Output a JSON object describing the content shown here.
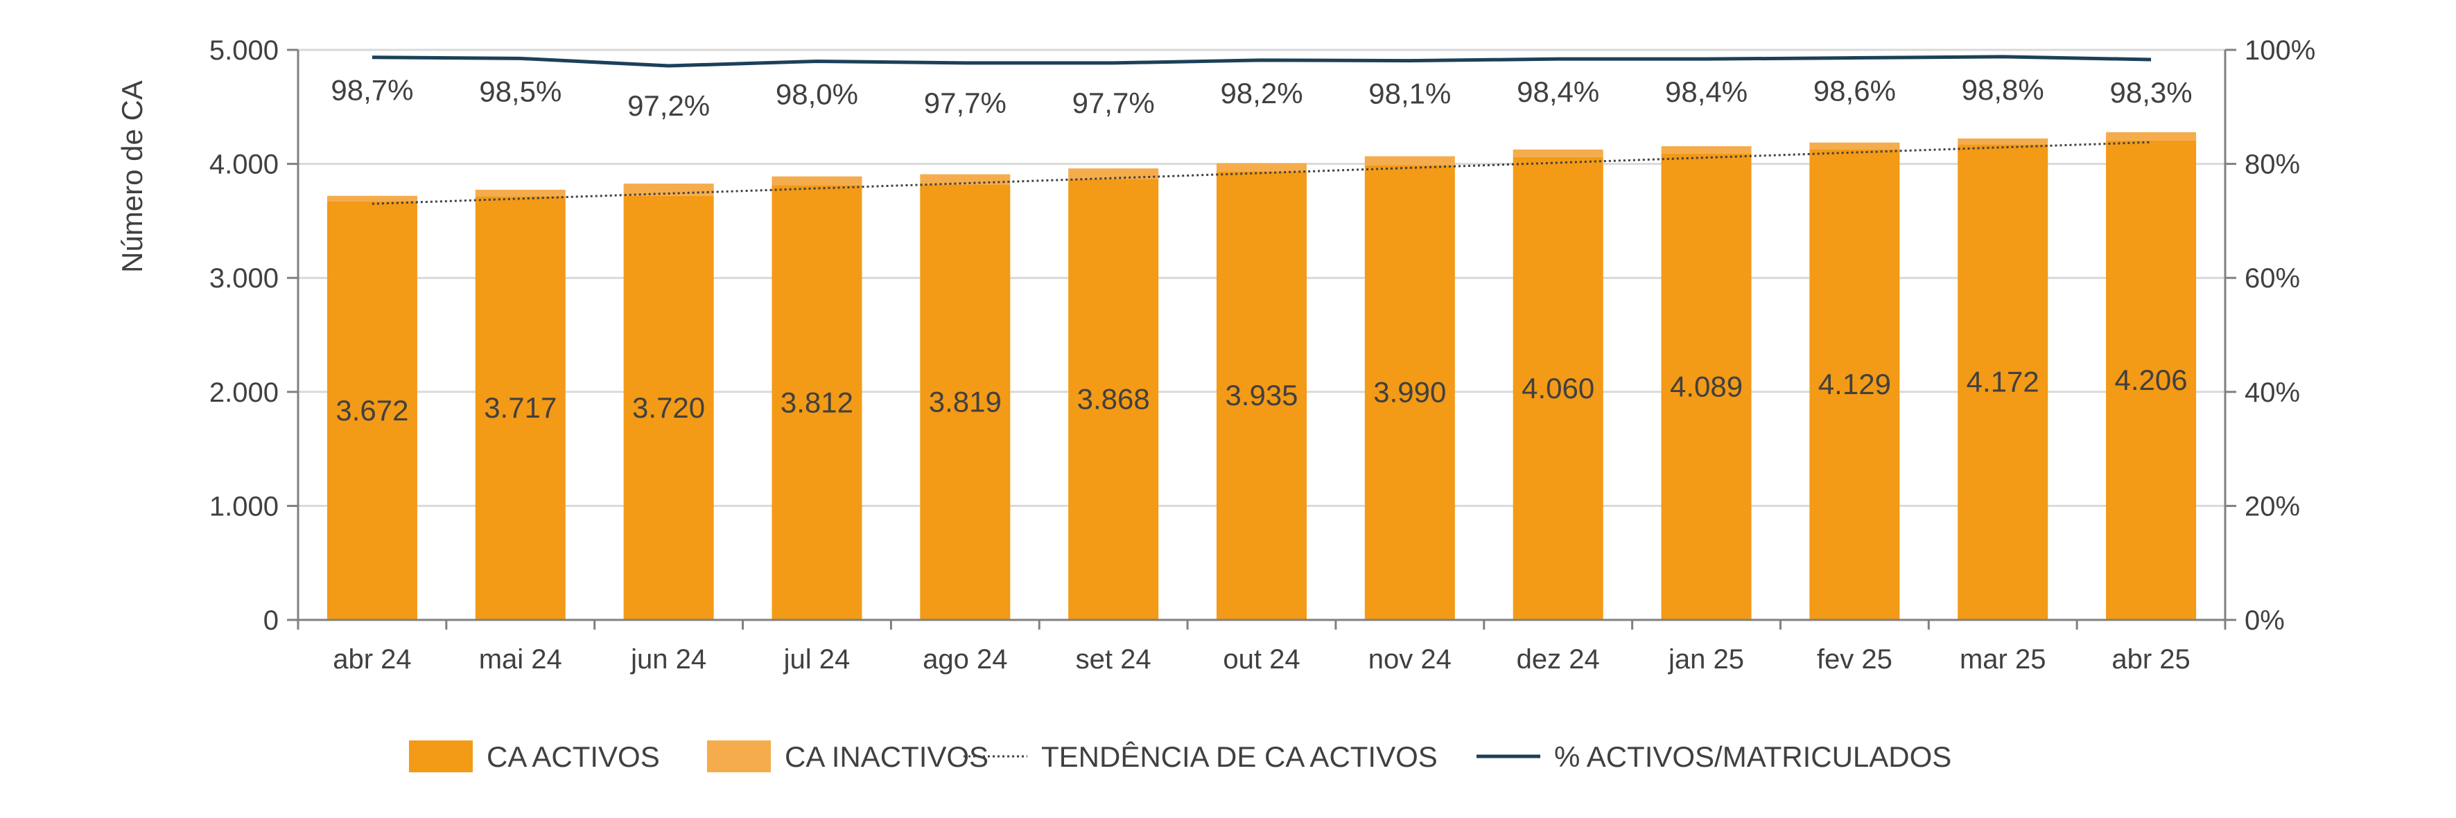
{
  "chart_data": {
    "type": "bar",
    "categories": [
      "abr 24",
      "mai 24",
      "jun 24",
      "jul 24",
      "ago 24",
      "set 24",
      "out 24",
      "nov 24",
      "dez 24",
      "jan 25",
      "fev 25",
      "mar 25",
      "abr 25"
    ],
    "series": [
      {
        "name": "CA ACTIVOS",
        "type": "bar",
        "axis": "left",
        "color": "#F39A16",
        "values": [
          3672,
          3717,
          3720,
          3812,
          3819,
          3868,
          3935,
          3990,
          4060,
          4089,
          4129,
          4172,
          4206
        ],
        "labels": [
          "3.672",
          "3.717",
          "3.720",
          "3.812",
          "3.819",
          "3.868",
          "3.935",
          "3.990",
          "4.060",
          "4.089",
          "4.129",
          "4.172",
          "4.206"
        ]
      },
      {
        "name": "CA INACTIVOS",
        "type": "bar-stacked",
        "axis": "left",
        "color": "#F5AC4C",
        "values": [
          48,
          56,
          107,
          78,
          90,
          92,
          71,
          77,
          66,
          66,
          58,
          51,
          72
        ]
      },
      {
        "name": "TENDÊNCIA DE CA ACTIVOS",
        "type": "trendline",
        "axis": "left",
        "color": "#404040",
        "style": "dotted",
        "values": [
          3650,
          3695,
          3740,
          3785,
          3830,
          3875,
          3920,
          3965,
          4010,
          4055,
          4100,
          4145,
          4190
        ]
      },
      {
        "name": "% ACTIVOS/MATRICULADOS",
        "type": "line",
        "axis": "right",
        "color": "#1C4058",
        "values": [
          98.7,
          98.5,
          97.2,
          98.0,
          97.7,
          97.7,
          98.2,
          98.1,
          98.4,
          98.4,
          98.6,
          98.8,
          98.3
        ],
        "labels": [
          "98,7%",
          "98,5%",
          "97,2%",
          "98,0%",
          "97,7%",
          "97,7%",
          "98,2%",
          "98,1%",
          "98,4%",
          "98,4%",
          "98,6%",
          "98,8%",
          "98,3%"
        ]
      }
    ],
    "ylabel": "Número de CA",
    "ylim": [
      0,
      5000
    ],
    "yticks": [
      "0",
      "1.000",
      "2.000",
      "3.000",
      "4.000",
      "5.000"
    ],
    "y2lim": [
      0,
      100
    ],
    "y2ticks": [
      "0%",
      "20%",
      "40%",
      "60%",
      "80%",
      "100%"
    ],
    "grid": true,
    "legend_position": "bottom"
  }
}
